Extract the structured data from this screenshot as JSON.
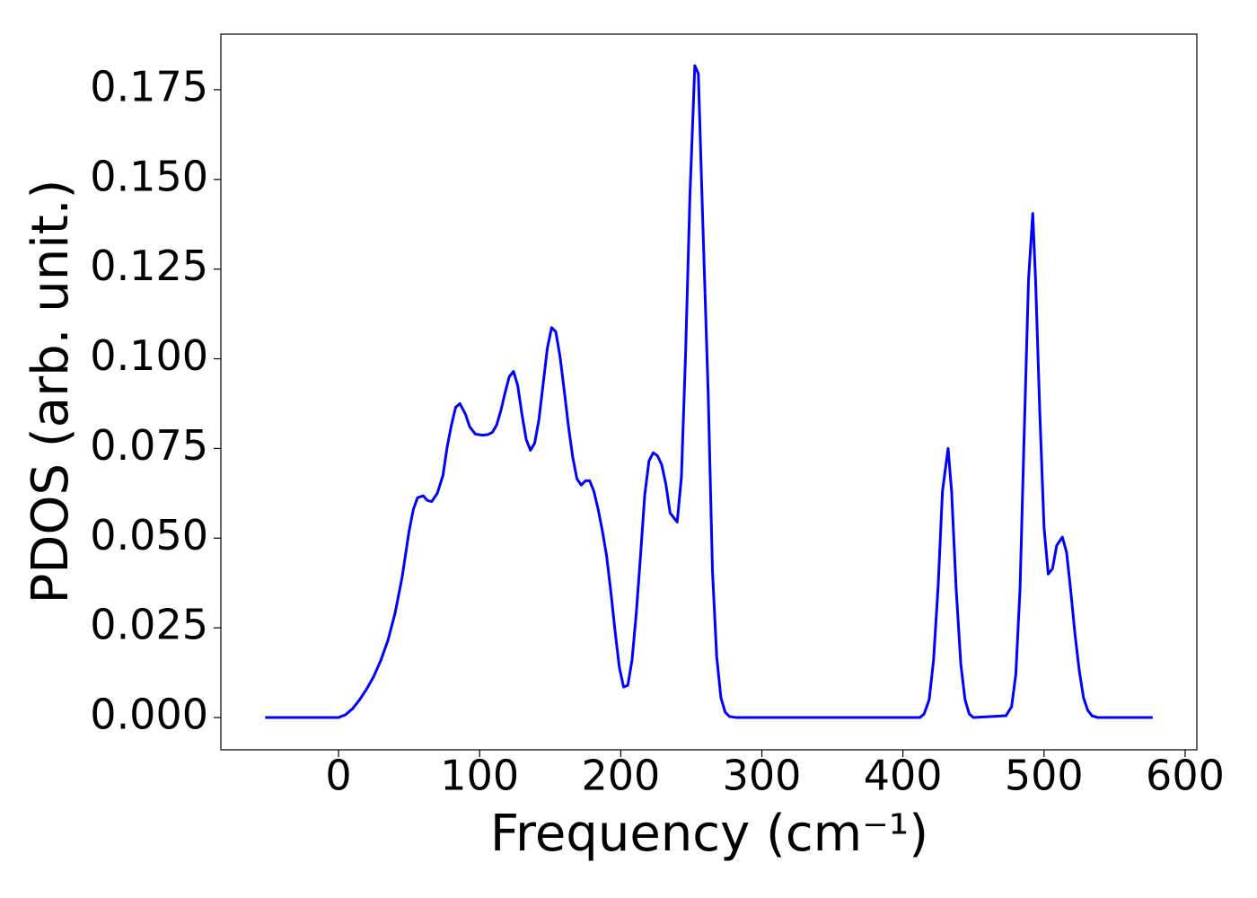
{
  "chart_data": {
    "type": "line",
    "xlabel": "Frequency (cm⁻¹)",
    "ylabel": "PDOS (arb. unit.)",
    "x": [
      -52,
      0,
      5,
      10,
      15,
      20,
      25,
      30,
      35,
      40,
      45,
      50,
      53,
      56,
      60,
      63,
      66,
      70,
      74,
      77,
      80,
      83,
      86,
      90,
      93,
      97,
      102,
      106,
      109,
      112,
      115,
      118,
      121,
      124,
      127,
      130,
      133,
      136,
      139,
      142,
      145,
      148,
      151,
      154,
      157,
      160,
      163,
      166,
      169,
      172,
      175,
      178,
      181,
      184,
      187,
      190,
      193,
      196,
      199,
      202,
      205,
      208,
      211,
      214,
      217,
      220,
      223,
      226,
      229,
      232,
      235,
      240,
      243,
      246,
      249,
      252.5,
      255,
      258,
      262,
      265,
      268,
      271,
      274,
      277,
      282,
      412,
      415,
      418.6,
      421.7,
      425,
      428,
      432,
      434.5,
      437.7,
      441,
      444,
      447,
      450,
      473,
      477,
      480,
      483,
      486,
      489,
      492,
      494,
      497,
      500,
      503,
      506,
      509,
      513,
      516,
      519,
      522,
      525,
      528,
      531,
      534,
      538,
      577
    ],
    "series": [
      {
        "name": "PDOS",
        "color": "#0000ff",
        "values": [
          0,
          0,
          0.0008,
          0.0025,
          0.005,
          0.008,
          0.0115,
          0.016,
          0.0215,
          0.029,
          0.039,
          0.052,
          0.058,
          0.0613,
          0.0618,
          0.0605,
          0.0602,
          0.0625,
          0.0675,
          0.0755,
          0.0815,
          0.0865,
          0.0875,
          0.0845,
          0.081,
          0.079,
          0.0787,
          0.0789,
          0.0795,
          0.0815,
          0.0855,
          0.0905,
          0.095,
          0.0965,
          0.0925,
          0.0845,
          0.0775,
          0.0745,
          0.0765,
          0.083,
          0.093,
          0.103,
          0.1087,
          0.1075,
          0.1005,
          0.091,
          0.081,
          0.0725,
          0.0665,
          0.0648,
          0.066,
          0.066,
          0.063,
          0.058,
          0.052,
          0.045,
          0.035,
          0.024,
          0.014,
          0.0085,
          0.009,
          0.016,
          0.029,
          0.045,
          0.062,
          0.0715,
          0.0738,
          0.073,
          0.0705,
          0.065,
          0.057,
          0.0545,
          0.067,
          0.102,
          0.145,
          0.1817,
          0.1795,
          0.14,
          0.09,
          0.041,
          0.017,
          0.0055,
          0.0015,
          0.0003,
          0,
          0,
          0.001,
          0.005,
          0.016,
          0.037,
          0.063,
          0.075,
          0.063,
          0.036,
          0.015,
          0.005,
          0.001,
          0,
          0.0005,
          0.003,
          0.012,
          0.036,
          0.08,
          0.122,
          0.1405,
          0.122,
          0.085,
          0.053,
          0.04,
          0.0415,
          0.048,
          0.0503,
          0.046,
          0.035,
          0.023,
          0.013,
          0.0055,
          0.002,
          0.0005,
          0,
          0
        ]
      }
    ],
    "xlim": [
      -83.4,
      608.3
    ],
    "ylim": [
      -0.009,
      0.1905
    ],
    "xticks": [
      0,
      100,
      200,
      300,
      400,
      500,
      600
    ],
    "yticks": [
      {
        "value": 0,
        "label": "0.000"
      },
      {
        "value": 0.025,
        "label": "0.025"
      },
      {
        "value": 0.05,
        "label": "0.050"
      },
      {
        "value": 0.075,
        "label": "0.075"
      },
      {
        "value": 0.1,
        "label": "0.100"
      },
      {
        "value": 0.125,
        "label": "0.125"
      },
      {
        "value": 0.15,
        "label": "0.150"
      },
      {
        "value": 0.175,
        "label": "0.175"
      }
    ],
    "grid": false
  }
}
